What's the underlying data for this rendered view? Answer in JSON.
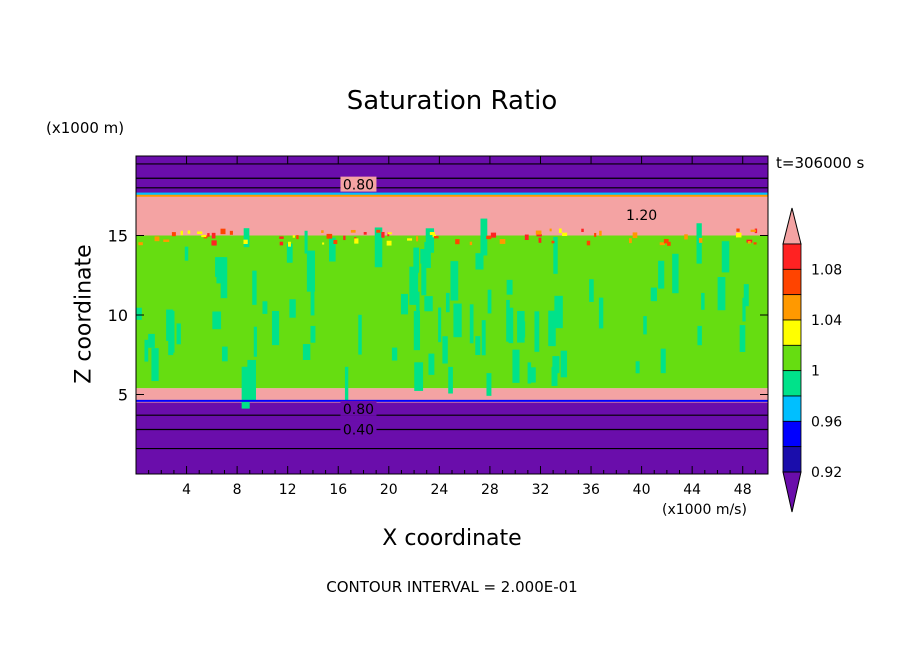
{
  "chart_data": {
    "type": "heatmap",
    "title": "Saturation Ratio",
    "xlabel": "X coordinate",
    "ylabel": "Z coordinate",
    "x_unit": "(x1000 m/s)",
    "y_unit": "(x1000 m)",
    "time_label": "t=306000 s",
    "footer": "CONTOUR INTERVAL = 2.000E-01",
    "xlim": [
      0,
      50
    ],
    "ylim": [
      0,
      20
    ],
    "x_ticks": [
      "4",
      "8",
      "12",
      "16",
      "20",
      "24",
      "28",
      "32",
      "36",
      "40",
      "44",
      "48"
    ],
    "y_ticks": [
      "5",
      "10",
      "15"
    ],
    "contour_labels": [
      {
        "text": "0.80",
        "x": 17.6,
        "y": 18.2
      },
      {
        "text": "1.20",
        "x": 40.0,
        "y": 16.3
      },
      {
        "text": "0.80",
        "x": 17.6,
        "y": 4.1
      },
      {
        "text": "0.40",
        "x": 17.6,
        "y": 2.8
      }
    ],
    "colorbar": {
      "labels": [
        "1.08",
        "1.04",
        "1",
        "0.96",
        "0.92"
      ],
      "colors": [
        "#6a0dab",
        "#1a0dab",
        "#0000ff",
        "#00bfff",
        "#00e28a",
        "#66dd11",
        "#ffff00",
        "#ff9900",
        "#ff4400",
        "#ff2222",
        "#f4a3a3"
      ]
    },
    "profile": [
      {
        "z_min": 0,
        "z_max": 4.5,
        "value": 0.4,
        "color": "#6a0dab"
      },
      {
        "z_min": 4.5,
        "z_max": 5.4,
        "value": 1.12,
        "color": "#f4a3a3"
      },
      {
        "z_min": 5.4,
        "z_max": 15.0,
        "value": 1.0,
        "color": "#66dd11"
      },
      {
        "z_min": 15.0,
        "z_max": 17.5,
        "value": 1.12,
        "color": "#f4a3a3"
      },
      {
        "z_min": 17.5,
        "z_max": 20,
        "value": 0.5,
        "color": "#6a0dab"
      }
    ]
  }
}
